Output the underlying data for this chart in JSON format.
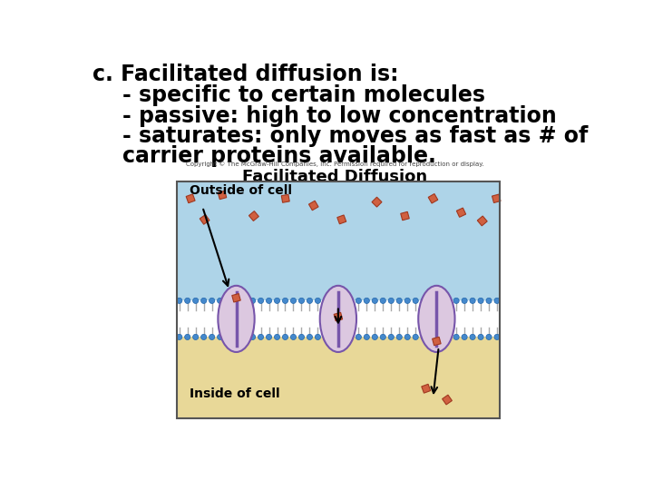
{
  "background_color": "#ffffff",
  "title_line": "c. Facilitated diffusion is:",
  "bullet1": "    - specific to certain molecules",
  "bullet2": "    - passive: high to low concentration",
  "bullet3": "    - saturates: only moves as fast as # of",
  "bullet3b": "    carrier proteins available.",
  "copyright": "Copyright © The McGraw-Hill Companies, Inc. Permission required for reproduction or display.",
  "diagram_title": "Facilitated Diffusion",
  "outside_label": "Outside of cell",
  "inside_label": "Inside of cell",
  "bg_outside_color": "#aed4e8",
  "bg_inside_color": "#e8d898",
  "membrane_white": "#f0f0f0",
  "membrane_blue_dots": "#4488cc",
  "protein_fill": "#dcc8e0",
  "protein_line": "#7755aa",
  "molecule_fill": "#d06040",
  "molecule_edge": "#a03820",
  "title_fontsize": 17,
  "bullet_fontsize": 17,
  "diagram_title_fontsize": 13,
  "label_fontsize": 9,
  "outside_label_fontsize": 10,
  "inside_label_fontsize": 10
}
